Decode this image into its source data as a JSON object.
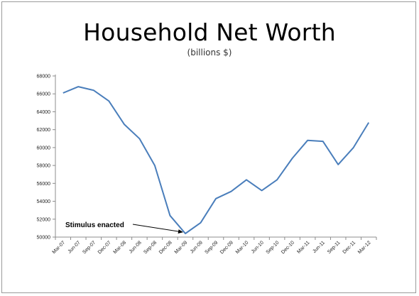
{
  "chart_data": {
    "type": "line",
    "title": "Household Net Worth",
    "subtitle": "(billions $)",
    "xlabel": "",
    "ylabel": "",
    "ylim": [
      50000,
      68000
    ],
    "yticks": [
      50000,
      52000,
      54000,
      56000,
      58000,
      60000,
      62000,
      64000,
      66000,
      68000
    ],
    "grid": false,
    "categories": [
      "Mar-07",
      "Jun-07",
      "Sep-07",
      "Dec-07",
      "Mar-08",
      "Jun-08",
      "Sep-08",
      "Dec-08",
      "Mar-09",
      "Jun-09",
      "Sep-09",
      "Dec-09",
      "Mar-10",
      "Jun-10",
      "Sep-10",
      "Dec-10",
      "Mar-11",
      "Jun-11",
      "Sep-11",
      "Dec-11",
      "Mar-12"
    ],
    "series": [
      {
        "values": [
          66100,
          66800,
          66400,
          65200,
          62600,
          61000,
          58000,
          52400,
          50400,
          51600,
          54300,
          55100,
          56400,
          55200,
          56400,
          58800,
          60800,
          60700,
          58100,
          60000,
          62800
        ],
        "color": "#4a7ebb"
      }
    ],
    "annotations": [
      {
        "text": "Stimulus enacted",
        "category": "Mar-09",
        "value": 50400
      }
    ]
  }
}
